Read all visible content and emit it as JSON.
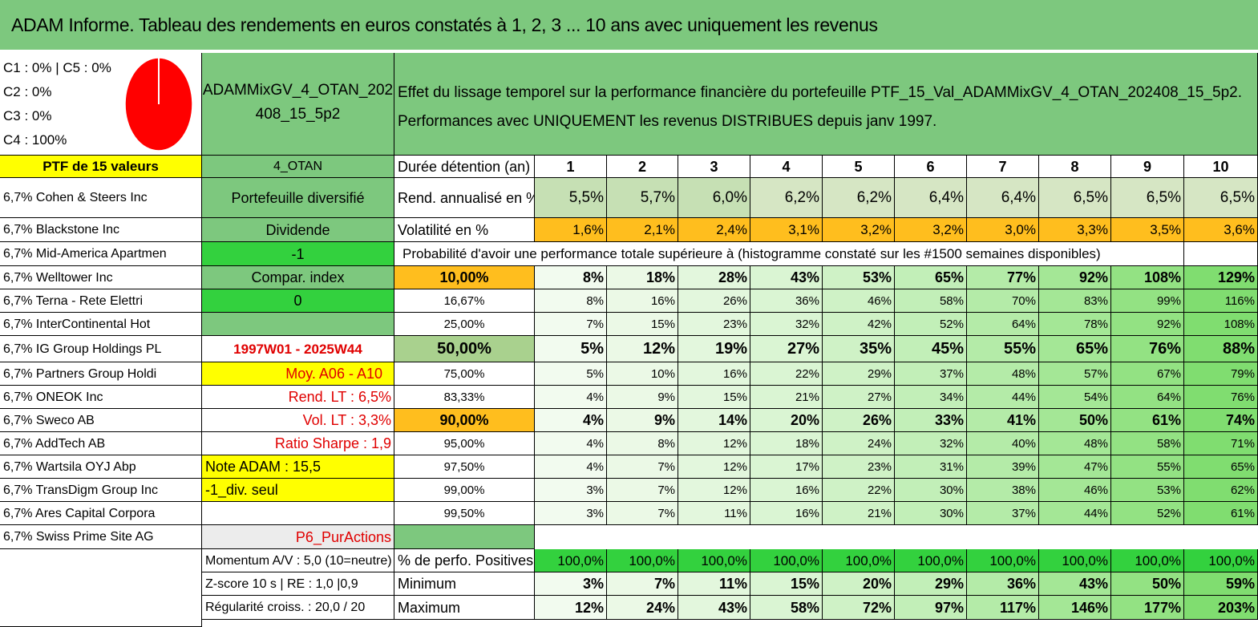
{
  "title": "ADAM Informe. Tableau des rendements en euros constatés à 1, 2, 3 ... 10 ans avec uniquement les revenus",
  "alloc": {
    "line1": "C1 : 0% | C5 : 0%",
    "line2": "C2 : 0%",
    "line3": "C3 : 0%",
    "line4": "C4 : 100%",
    "pie_color": "#ff0000",
    "pie_fraction_c4": 1.0
  },
  "portfolio": {
    "name_line1": "ADAMMixGV_4_OTAN_202",
    "name_line2": "408_15_5p2",
    "desc_line1": "Effet du lissage temporel sur la performance financière du portefeuille PTF_15_Val_ADAMMixGV_4_OTAN_202408_15_5p2.",
    "desc_line2": "Performances avec UNIQUEMENT les revenus DISTRIBUES depuis janv 1997.",
    "ptf_label": "PTF de 15 valeurs",
    "code": "4_OTAN"
  },
  "side": {
    "diversifie": "Portefeuille diversifié",
    "dividende": "Dividende",
    "minus1": "-1",
    "compar": "Compar. index",
    "zero": "0",
    "period": "1997W01 - 2025W44",
    "moy": "Moy. A06 - A10",
    "rend_lt": "Rend. LT : 6,5%",
    "vol_lt": "Vol. LT : 3,3%",
    "sharpe": "Ratio Sharpe : 1,9",
    "note": "Note ADAM : 15,5",
    "div_seul": "-1_div. seul",
    "p6": "P6_PurActions"
  },
  "holdings": [
    "6,7% Cohen & Steers Inc",
    "6,7% Blackstone Inc",
    "6,7% Mid-America Apartmen",
    "6,7% Welltower Inc",
    "6,7% Terna - Rete Elettri",
    "6,7% InterContinental Hot",
    "6,7% IG Group Holdings PL",
    "6,7% Partners Group Holdi",
    "6,7% ONEOK Inc",
    "6,7% Sweco AB",
    "6,7% AddTech AB",
    "6,7% Wartsila OYJ Abp",
    "6,7% TransDigm Group Inc",
    "6,7% Ares Capital Corpora",
    "6,7% Swiss Prime Site AG"
  ],
  "labels": {
    "duree": "Durée détention (an)",
    "rend": "Rend. annualisé en %",
    "vol": "Volatilité en %",
    "proba": "Probabilité d'avoir une performance totale supérieure à (histogramme constaté sur les #1500 semaines disponibles)",
    "momentum": "Momentum A/V : 5,0 (10=neutre)",
    "zscore": "Z-score 10 s | RE : 1,0 |0,9",
    "regularite": "Régularité croiss. : 20,0 / 20",
    "positives": "% de perfo. Positives",
    "minimum": "Minimum",
    "maximum": "Maximum"
  },
  "years": [
    "1",
    "2",
    "3",
    "4",
    "5",
    "6",
    "7",
    "8",
    "9",
    "10"
  ],
  "rend": [
    "5,5%",
    "5,7%",
    "6,0%",
    "6,2%",
    "6,2%",
    "6,4%",
    "6,4%",
    "6,5%",
    "6,5%",
    "6,5%"
  ],
  "vol": [
    "1,6%",
    "2,1%",
    "2,4%",
    "3,1%",
    "3,2%",
    "3,2%",
    "3,0%",
    "3,3%",
    "3,5%",
    "3,6%"
  ],
  "quantiles": [
    {
      "q": "10,00%",
      "v": [
        "8%",
        "18%",
        "28%",
        "43%",
        "53%",
        "65%",
        "77%",
        "92%",
        "108%",
        "129%"
      ]
    },
    {
      "q": "16,67%",
      "v": [
        "8%",
        "16%",
        "26%",
        "36%",
        "46%",
        "58%",
        "70%",
        "83%",
        "99%",
        "116%"
      ]
    },
    {
      "q": "25,00%",
      "v": [
        "7%",
        "15%",
        "23%",
        "32%",
        "42%",
        "52%",
        "64%",
        "78%",
        "92%",
        "108%"
      ]
    },
    {
      "q": "50,00%",
      "v": [
        "5%",
        "12%",
        "19%",
        "27%",
        "35%",
        "45%",
        "55%",
        "65%",
        "76%",
        "88%"
      ]
    },
    {
      "q": "75,00%",
      "v": [
        "5%",
        "10%",
        "16%",
        "22%",
        "29%",
        "37%",
        "48%",
        "57%",
        "67%",
        "79%"
      ]
    },
    {
      "q": "83,33%",
      "v": [
        "4%",
        "9%",
        "15%",
        "21%",
        "27%",
        "34%",
        "44%",
        "54%",
        "64%",
        "76%"
      ]
    },
    {
      "q": "90,00%",
      "v": [
        "4%",
        "9%",
        "14%",
        "20%",
        "26%",
        "33%",
        "41%",
        "50%",
        "61%",
        "74%"
      ]
    },
    {
      "q": "95,00%",
      "v": [
        "4%",
        "8%",
        "12%",
        "18%",
        "24%",
        "32%",
        "40%",
        "48%",
        "58%",
        "71%"
      ]
    },
    {
      "q": "97,50%",
      "v": [
        "4%",
        "7%",
        "12%",
        "17%",
        "23%",
        "31%",
        "39%",
        "47%",
        "55%",
        "65%"
      ]
    },
    {
      "q": "99,00%",
      "v": [
        "3%",
        "7%",
        "12%",
        "16%",
        "22%",
        "30%",
        "38%",
        "46%",
        "53%",
        "62%"
      ]
    },
    {
      "q": "99,50%",
      "v": [
        "3%",
        "7%",
        "11%",
        "16%",
        "21%",
        "30%",
        "37%",
        "44%",
        "52%",
        "61%"
      ]
    }
  ],
  "positives": [
    "100,0%",
    "100,0%",
    "100,0%",
    "100,0%",
    "100,0%",
    "100,0%",
    "100,0%",
    "100,0%",
    "100,0%",
    "100,0%"
  ],
  "minimum": [
    "3%",
    "7%",
    "11%",
    "15%",
    "20%",
    "29%",
    "36%",
    "43%",
    "50%",
    "59%"
  ],
  "maximum": [
    "12%",
    "24%",
    "43%",
    "58%",
    "72%",
    "97%",
    "117%",
    "146%",
    "177%",
    "203%"
  ]
}
